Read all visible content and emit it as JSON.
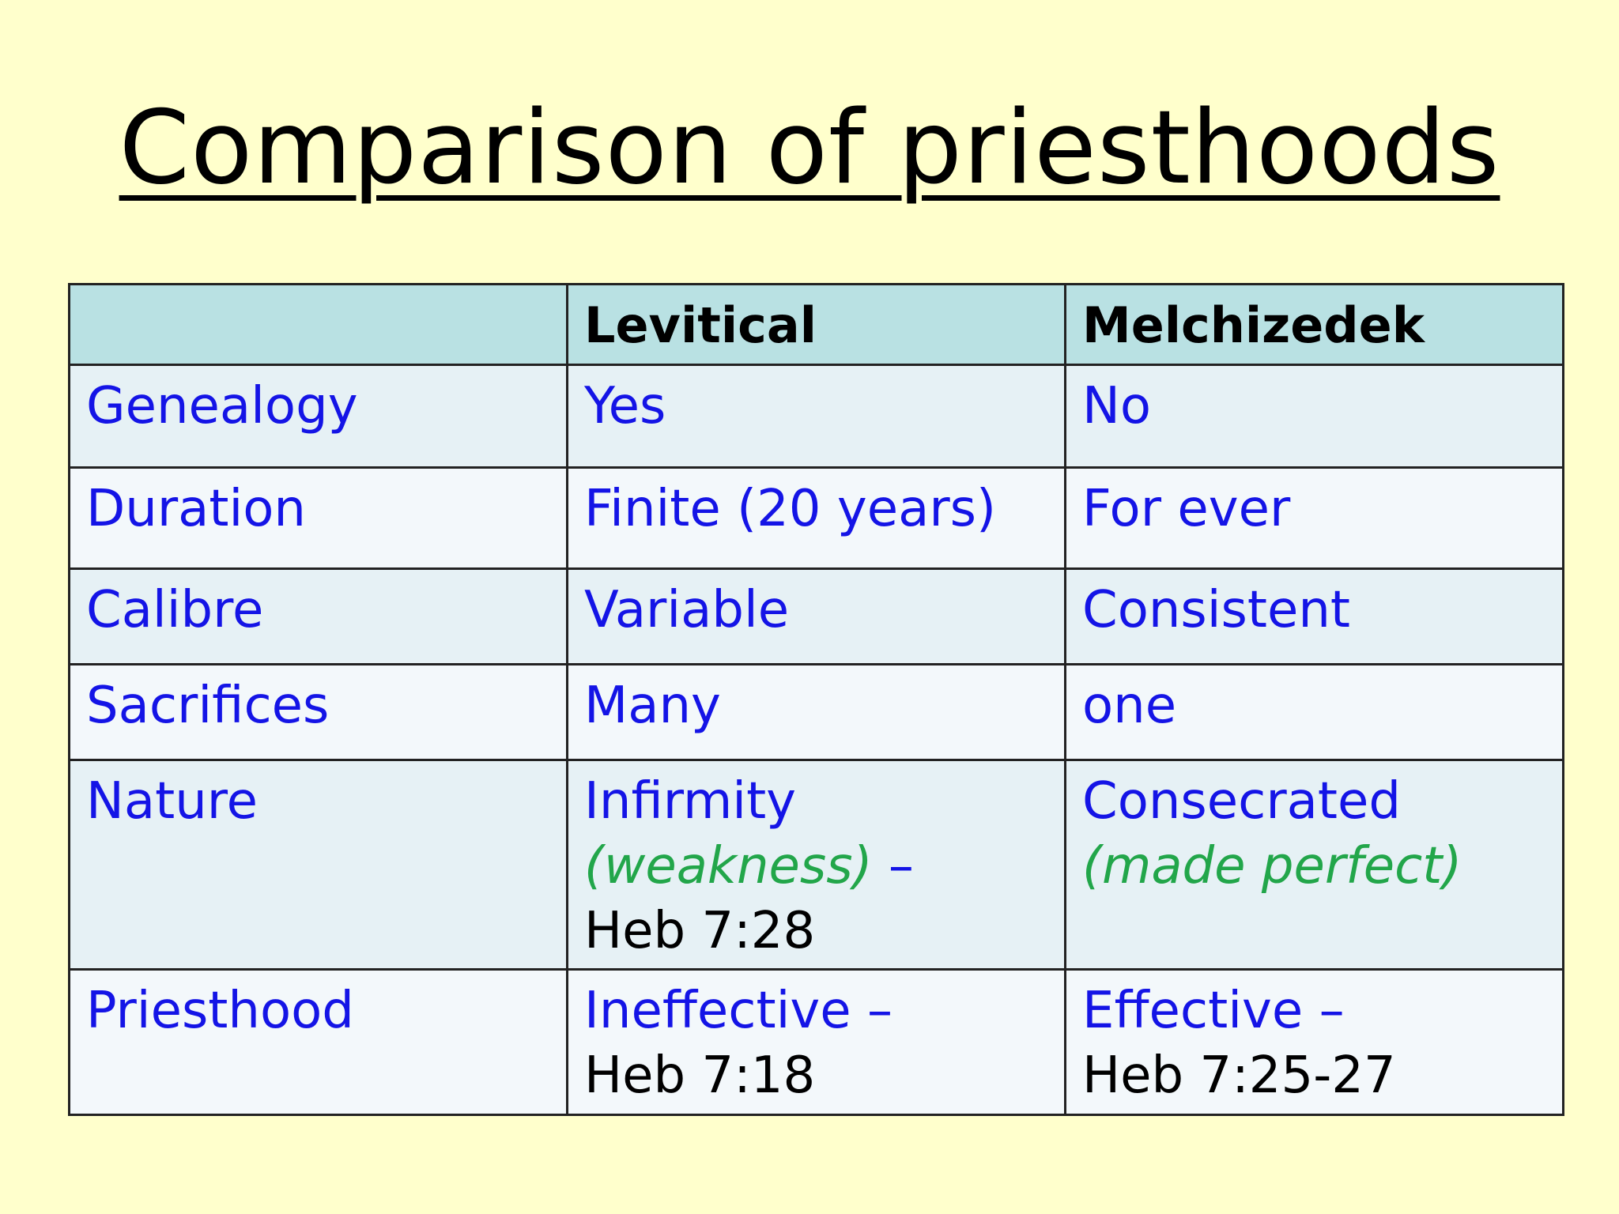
{
  "title": "Comparison of priesthoods",
  "columns": [
    "",
    "Levitical",
    "Melchizedek"
  ],
  "rows": [
    {
      "label": "Genealogy",
      "levitical": "Yes",
      "melchizedek": "No"
    },
    {
      "label": "Duration",
      "levitical": "Finite (20 years)",
      "melchizedek": "For ever"
    },
    {
      "label": "Calibre",
      "levitical": "Variable",
      "melchizedek": "Consistent"
    },
    {
      "label": "Sacrifices",
      "levitical": "Many",
      "melchizedek": "one"
    },
    {
      "label": "Nature",
      "levitical": {
        "main": "Infirmity",
        "note": "(weakness)",
        "dash": " –",
        "ref": "Heb 7:28"
      },
      "melchizedek": {
        "main": "Consecrated",
        "note": "(made perfect)"
      }
    },
    {
      "label": "Priesthood",
      "levitical": {
        "main": "Ineffective –",
        "ref": "Heb 7:18"
      },
      "melchizedek": {
        "main": "Effective –",
        "ref": "Heb 7:25-27"
      }
    }
  ],
  "colors": {
    "background": "#ffffcc",
    "header_fill": "#b9e1e3",
    "row_text": "#1414e6",
    "note_text": "#22a64a",
    "reference_text": "#000000"
  }
}
